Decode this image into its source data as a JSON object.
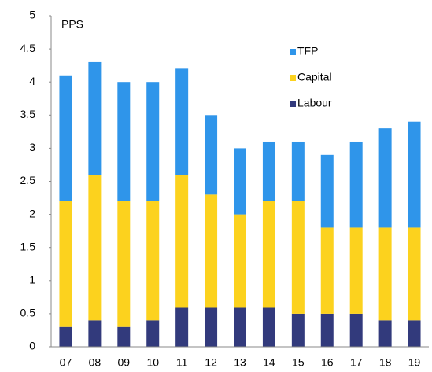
{
  "chart_data": {
    "type": "stacked_bar",
    "ylabel": "PPS",
    "categories": [
      "07",
      "08",
      "09",
      "10",
      "11",
      "12",
      "13",
      "14",
      "15",
      "16",
      "17",
      "18",
      "19"
    ],
    "series": [
      {
        "name": "Labour",
        "color": "#323a7c",
        "values": [
          0.3,
          0.4,
          0.3,
          0.4,
          0.6,
          0.6,
          0.6,
          0.6,
          0.5,
          0.5,
          0.5,
          0.4,
          0.4
        ]
      },
      {
        "name": "Capital",
        "color": "#fcd21e",
        "values": [
          1.9,
          2.2,
          1.9,
          1.8,
          2.0,
          1.7,
          1.4,
          1.6,
          1.7,
          1.3,
          1.3,
          1.4,
          1.4
        ]
      },
      {
        "name": "TFP",
        "color": "#2f95ea",
        "values": [
          1.9,
          1.7,
          1.8,
          1.8,
          1.6,
          1.2,
          1.0,
          0.9,
          0.9,
          1.1,
          1.3,
          1.5,
          1.6
        ]
      }
    ],
    "ylim": [
      0,
      5
    ],
    "yticks": [
      0,
      0.5,
      1,
      1.5,
      2,
      2.5,
      3,
      3.5,
      4,
      4.5,
      5
    ],
    "legend": "upper right"
  }
}
